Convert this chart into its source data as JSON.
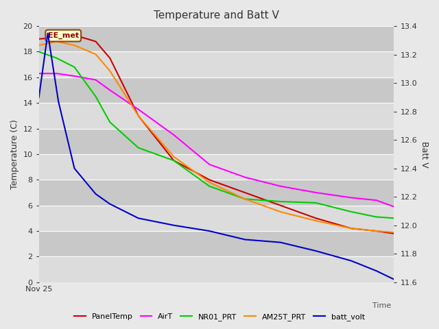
{
  "title": "Temperature and Batt V",
  "xlabel": "Time",
  "ylabel_left": "Temperature (C)",
  "ylabel_right": "Batt V",
  "annotation": "EE_met",
  "x_label": "Nov 25",
  "ylim_left": [
    0,
    20
  ],
  "ylim_right": [
    11.6,
    13.4
  ],
  "yticks_left": [
    0,
    2,
    4,
    6,
    8,
    10,
    12,
    14,
    16,
    18,
    20
  ],
  "yticks_right": [
    11.6,
    11.8,
    12.0,
    12.2,
    12.4,
    12.6,
    12.8,
    13.0,
    13.2,
    13.4
  ],
  "background_color": "#e8e8e8",
  "plot_bg_light": "#dcdcdc",
  "plot_bg_dark": "#c8c8c8",
  "grid_color": "#ffffff",
  "series": {
    "PanelTemp": {
      "color": "#cc0000",
      "x": [
        0,
        0.05,
        0.1,
        0.16,
        0.2,
        0.28,
        0.38,
        0.48,
        0.58,
        0.68,
        0.78,
        0.88,
        0.95,
        1.0
      ],
      "y": [
        19.0,
        19.1,
        19.3,
        18.8,
        17.5,
        13.0,
        9.5,
        8.0,
        7.0,
        6.0,
        5.0,
        4.2,
        4.0,
        3.8
      ]
    },
    "AirT": {
      "color": "#ff00ff",
      "x": [
        0,
        0.05,
        0.1,
        0.16,
        0.2,
        0.28,
        0.38,
        0.48,
        0.58,
        0.68,
        0.78,
        0.88,
        0.95,
        1.0
      ],
      "y": [
        16.3,
        16.3,
        16.1,
        15.8,
        15.0,
        13.5,
        11.5,
        9.2,
        8.2,
        7.5,
        7.0,
        6.6,
        6.4,
        5.9
      ]
    },
    "NR01_PRT": {
      "color": "#00cc00",
      "x": [
        0,
        0.05,
        0.1,
        0.16,
        0.2,
        0.28,
        0.38,
        0.48,
        0.58,
        0.68,
        0.78,
        0.88,
        0.95,
        1.0
      ],
      "y": [
        18.0,
        17.5,
        16.8,
        14.5,
        12.5,
        10.5,
        9.5,
        7.5,
        6.5,
        6.3,
        6.2,
        5.5,
        5.1,
        5.0
      ]
    },
    "AM25T_PRT": {
      "color": "#ff8800",
      "x": [
        0,
        0.05,
        0.1,
        0.16,
        0.2,
        0.28,
        0.38,
        0.48,
        0.58,
        0.68,
        0.78,
        0.88,
        0.95,
        1.0
      ],
      "y": [
        18.5,
        18.8,
        18.5,
        17.8,
        16.5,
        13.0,
        9.8,
        7.8,
        6.5,
        5.5,
        4.8,
        4.2,
        4.0,
        3.9
      ]
    },
    "batt_volt": {
      "color": "#0000cc",
      "x": [
        0,
        0.025,
        0.055,
        0.1,
        0.16,
        0.2,
        0.28,
        0.38,
        0.48,
        0.58,
        0.68,
        0.78,
        0.88,
        0.95,
        1.0
      ],
      "y": [
        12.9,
        13.35,
        12.87,
        12.4,
        12.22,
        12.15,
        12.05,
        12.0,
        11.96,
        11.9,
        11.88,
        11.82,
        11.75,
        11.68,
        11.62
      ]
    }
  },
  "legend_entries": [
    "PanelTemp",
    "AirT",
    "NR01_PRT",
    "AM25T_PRT",
    "batt_volt"
  ],
  "legend_colors": [
    "#cc0000",
    "#ff00ff",
    "#00cc00",
    "#ff8800",
    "#0000cc"
  ]
}
